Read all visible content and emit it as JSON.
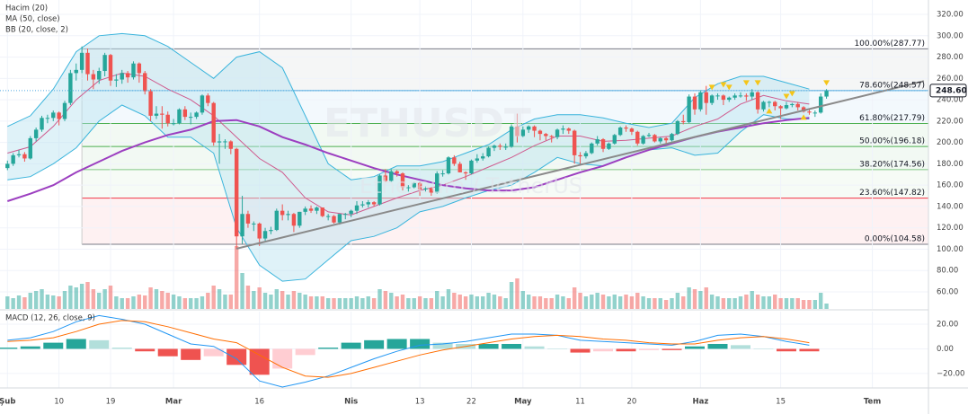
{
  "chart_data": {
    "type": "candlestick",
    "watermark": "ETHUSDT",
    "watermark_sub": "Ethereum / TetherUS",
    "volume_name": "Hacim (20)",
    "up_color": "#26a69a",
    "down_color": "#ef5350",
    "ylim": [
      44,
      333.5
    ],
    "yticks": [
      {
        "value": 320,
        "label": "320.00"
      },
      {
        "value": 300,
        "label": "300.00"
      },
      {
        "value": 280,
        "label": "280.00"
      },
      {
        "value": 260,
        "label": "260.00"
      },
      {
        "value": 240,
        "label": "240.00"
      },
      {
        "value": 220,
        "label": "220.00"
      },
      {
        "value": 200,
        "label": "200.00"
      },
      {
        "value": 180,
        "label": "180.00"
      },
      {
        "value": 160,
        "label": "160.00"
      },
      {
        "value": 140,
        "label": "140.00"
      },
      {
        "value": 120,
        "label": "120.00"
      },
      {
        "value": 100,
        "label": "100.00"
      },
      {
        "value": 80,
        "label": "80.00"
      },
      {
        "value": 60,
        "label": "60.00"
      }
    ],
    "xlim": [
      -1.3,
      160.8
    ],
    "xticks": [
      {
        "value": 0,
        "label": "Şub"
      },
      {
        "value": 9,
        "label": "10"
      },
      {
        "value": 18,
        "label": "19"
      },
      {
        "value": 29,
        "label": "Mar"
      },
      {
        "value": 44,
        "label": "16"
      },
      {
        "value": 60,
        "label": "Nis"
      },
      {
        "value": 72,
        "label": "13"
      },
      {
        "value": 81,
        "label": "22"
      },
      {
        "value": 90,
        "label": "May"
      },
      {
        "value": 100,
        "label": "11"
      },
      {
        "value": 109,
        "label": "20"
      },
      {
        "value": 121,
        "label": "Haz"
      },
      {
        "value": 135,
        "label": "15"
      },
      {
        "value": 151,
        "label": "Tem"
      }
    ],
    "grid": true,
    "ohlc": [
      [
        176,
        183,
        174,
        180
      ],
      [
        180,
        190,
        178,
        188
      ],
      [
        188,
        193,
        186,
        189
      ],
      [
        189,
        191,
        182,
        185
      ],
      [
        185,
        206,
        184,
        204
      ],
      [
        204,
        214,
        201,
        212
      ],
      [
        212,
        225,
        210,
        223
      ],
      [
        223,
        226,
        218,
        223
      ],
      [
        223,
        230,
        220,
        228
      ],
      [
        228,
        229,
        216,
        222
      ],
      [
        222,
        239,
        220,
        237
      ],
      [
        237,
        268,
        235,
        265
      ],
      [
        265,
        274,
        258,
        268
      ],
      [
        268,
        290,
        265,
        284
      ],
      [
        284,
        288,
        258,
        264
      ],
      [
        264,
        268,
        250,
        259
      ],
      [
        259,
        270,
        255,
        267
      ],
      [
        267,
        284,
        262,
        282
      ],
      [
        282,
        283,
        253,
        258
      ],
      [
        258,
        264,
        252,
        259
      ],
      [
        259,
        268,
        255,
        265
      ],
      [
        265,
        267,
        256,
        261
      ],
      [
        261,
        276,
        259,
        274
      ],
      [
        274,
        275,
        256,
        265
      ],
      [
        265,
        267,
        245,
        248
      ],
      [
        248,
        250,
        220,
        225
      ],
      [
        225,
        234,
        222,
        227
      ],
      [
        227,
        234,
        213,
        226
      ],
      [
        226,
        229,
        215,
        218
      ],
      [
        218,
        222,
        216,
        218
      ],
      [
        218,
        232,
        217,
        231
      ],
      [
        231,
        234,
        221,
        224
      ],
      [
        224,
        228,
        217,
        224
      ],
      [
        224,
        229,
        222,
        228
      ],
      [
        228,
        245,
        226,
        244
      ],
      [
        244,
        246,
        234,
        237
      ],
      [
        237,
        238,
        197,
        200
      ],
      [
        200,
        208,
        180,
        201
      ],
      [
        201,
        203,
        194,
        201
      ],
      [
        201,
        202,
        189,
        194
      ],
      [
        194,
        195,
        100,
        112
      ],
      [
        112,
        150,
        105,
        133
      ],
      [
        133,
        136,
        120,
        124
      ],
      [
        124,
        126,
        117,
        124
      ],
      [
        124,
        125,
        103,
        110
      ],
      [
        110,
        120,
        108,
        117
      ],
      [
        117,
        121,
        114,
        118
      ],
      [
        118,
        138,
        117,
        136
      ],
      [
        136,
        142,
        127,
        132
      ],
      [
        132,
        136,
        127,
        133
      ],
      [
        133,
        134,
        116,
        122
      ],
      [
        122,
        135,
        120,
        135
      ],
      [
        135,
        140,
        132,
        138
      ],
      [
        138,
        141,
        134,
        136
      ],
      [
        136,
        140,
        133,
        139
      ],
      [
        139,
        139,
        130,
        131
      ],
      [
        131,
        133,
        127,
        131
      ],
      [
        131,
        132,
        124,
        125
      ],
      [
        125,
        133,
        123,
        133
      ],
      [
        133,
        134,
        128,
        133
      ],
      [
        133,
        137,
        130,
        136
      ],
      [
        136,
        145,
        133,
        141
      ],
      [
        141,
        145,
        139,
        142
      ],
      [
        142,
        146,
        139,
        144
      ],
      [
        144,
        145,
        140,
        142
      ],
      [
        142,
        170,
        141,
        169
      ],
      [
        169,
        175,
        163,
        164
      ],
      [
        164,
        175,
        163,
        173
      ],
      [
        173,
        174,
        168,
        171
      ],
      [
        171,
        172,
        155,
        158
      ],
      [
        158,
        160,
        154,
        158
      ],
      [
        158,
        163,
        157,
        162
      ],
      [
        162,
        163,
        150,
        156
      ],
      [
        156,
        159,
        154,
        157
      ],
      [
        157,
        158,
        150,
        153
      ],
      [
        153,
        173,
        152,
        171
      ],
      [
        171,
        174,
        168,
        171
      ],
      [
        171,
        187,
        170,
        186
      ],
      [
        186,
        188,
        178,
        180
      ],
      [
        180,
        182,
        172,
        172
      ],
      [
        172,
        173,
        165,
        171
      ],
      [
        171,
        184,
        170,
        183
      ],
      [
        183,
        189,
        181,
        185
      ],
      [
        185,
        190,
        183,
        187
      ],
      [
        187,
        196,
        186,
        195
      ],
      [
        195,
        198,
        192,
        197
      ],
      [
        197,
        199,
        193,
        196
      ],
      [
        196,
        199,
        193,
        196
      ],
      [
        196,
        217,
        195,
        215
      ],
      [
        215,
        227,
        200,
        206
      ],
      [
        206,
        215,
        205,
        212
      ],
      [
        212,
        216,
        209,
        215
      ],
      [
        215,
        216,
        205,
        211
      ],
      [
        211,
        212,
        202,
        208
      ],
      [
        208,
        209,
        202,
        206
      ],
      [
        206,
        207,
        200,
        205
      ],
      [
        205,
        213,
        203,
        212
      ],
      [
        212,
        216,
        208,
        213
      ],
      [
        213,
        214,
        208,
        211
      ],
      [
        211,
        212,
        180,
        188
      ],
      [
        188,
        191,
        180,
        187
      ],
      [
        187,
        192,
        185,
        190
      ],
      [
        190,
        200,
        189,
        199
      ],
      [
        199,
        206,
        197,
        203
      ],
      [
        203,
        204,
        191,
        194
      ],
      [
        194,
        200,
        193,
        199
      ],
      [
        199,
        208,
        198,
        207
      ],
      [
        207,
        215,
        206,
        214
      ],
      [
        214,
        216,
        210,
        213
      ],
      [
        213,
        214,
        207,
        210
      ],
      [
        210,
        211,
        197,
        199
      ],
      [
        199,
        207,
        198,
        206
      ],
      [
        206,
        209,
        205,
        207
      ],
      [
        207,
        208,
        200,
        201
      ],
      [
        201,
        205,
        199,
        204
      ],
      [
        204,
        205,
        199,
        202
      ],
      [
        202,
        209,
        201,
        208
      ],
      [
        208,
        221,
        207,
        220
      ],
      [
        220,
        226,
        217,
        219
      ],
      [
        219,
        245,
        218,
        243
      ],
      [
        243,
        246,
        226,
        231
      ],
      [
        231,
        249,
        229,
        247
      ],
      [
        247,
        253,
        226,
        237
      ],
      [
        237,
        245,
        235,
        244
      ],
      [
        244,
        246,
        240,
        244
      ],
      [
        244,
        245,
        235,
        240
      ],
      [
        240,
        243,
        238,
        242
      ],
      [
        242,
        246,
        240,
        244
      ],
      [
        244,
        247,
        242,
        244
      ],
      [
        244,
        246,
        239,
        243
      ],
      [
        243,
        250,
        240,
        247
      ],
      [
        247,
        248,
        227,
        231
      ],
      [
        231,
        239,
        229,
        238
      ],
      [
        238,
        239,
        233,
        238
      ],
      [
        238,
        239,
        230,
        234
      ],
      [
        234,
        235,
        222,
        232
      ],
      [
        232,
        238,
        231,
        235
      ],
      [
        235,
        237,
        233,
        236
      ],
      [
        236,
        238,
        230,
        233
      ],
      [
        233,
        234,
        228,
        229
      ],
      [
        229,
        231,
        226,
        228
      ],
      [
        228,
        230,
        224,
        228
      ],
      [
        228,
        246,
        227,
        243
      ],
      [
        243,
        250,
        241,
        248.6
      ]
    ],
    "volume": [
      14,
      12,
      15,
      13,
      18,
      20,
      22,
      16,
      15,
      14,
      20,
      26,
      24,
      28,
      30,
      22,
      18,
      22,
      26,
      14,
      12,
      12,
      14,
      16,
      15,
      24,
      22,
      20,
      18,
      16,
      14,
      12,
      12,
      12,
      14,
      18,
      26,
      22,
      16,
      16,
      70,
      40,
      26,
      20,
      24,
      18,
      16,
      22,
      20,
      16,
      20,
      18,
      16,
      14,
      14,
      14,
      12,
      12,
      12,
      12,
      12,
      14,
      12,
      14,
      12,
      22,
      20,
      18,
      14,
      16,
      12,
      12,
      14,
      12,
      12,
      20,
      14,
      22,
      18,
      16,
      14,
      16,
      14,
      14,
      18,
      16,
      14,
      12,
      30,
      34,
      20,
      16,
      14,
      14,
      12,
      12,
      16,
      14,
      12,
      24,
      18,
      14,
      16,
      18,
      16,
      14,
      16,
      14,
      16,
      14,
      18,
      14,
      12,
      12,
      12,
      10,
      12,
      18,
      14,
      24,
      22,
      20,
      24,
      16,
      14,
      12,
      12,
      12,
      14,
      16,
      20,
      16,
      14,
      14,
      16,
      12,
      12,
      12,
      12,
      10,
      10,
      10,
      18,
      6
    ],
    "indicator_x": [
      0,
      4,
      8,
      12,
      16,
      20,
      24,
      28,
      32,
      36,
      40,
      44,
      48,
      52,
      56,
      60,
      64,
      68,
      72,
      76,
      80,
      84,
      88,
      92,
      96,
      100,
      104,
      108,
      112,
      116,
      120,
      124,
      128,
      132,
      136,
      140
    ],
    "ma": {
      "name": "MA (50, close)",
      "color": "#9c3fc0",
      "values": [
        145,
        152,
        160,
        172,
        182,
        192,
        200,
        207,
        212,
        220,
        221,
        215,
        205,
        198,
        190,
        183,
        176,
        170,
        165,
        160,
        157,
        155,
        155,
        158,
        165,
        172,
        178,
        186,
        193,
        199,
        205,
        210,
        214,
        218,
        221,
        223
      ]
    },
    "bb": {
      "name": "BB (20, close, 2)",
      "color": "#3ab4dc",
      "fill": "#b7e3ef",
      "basis_color": "#cf5b8e",
      "upper": [
        215,
        225,
        250,
        285,
        300,
        302,
        300,
        290,
        275,
        260,
        280,
        285,
        270,
        225,
        180,
        165,
        168,
        178,
        178,
        182,
        190,
        198,
        212,
        222,
        226,
        226,
        223,
        218,
        214,
        218,
        242,
        255,
        262,
        262,
        256,
        250
      ],
      "basis": [
        190,
        196,
        215,
        240,
        258,
        265,
        262,
        250,
        240,
        225,
        205,
        185,
        172,
        148,
        135,
        132,
        140,
        148,
        155,
        160,
        168,
        177,
        186,
        197,
        206,
        206,
        201,
        202,
        204,
        206,
        215,
        222,
        236,
        244,
        239,
        236
      ],
      "lower": [
        165,
        168,
        180,
        195,
        220,
        235,
        225,
        205,
        205,
        190,
        120,
        85,
        70,
        72,
        90,
        108,
        112,
        120,
        135,
        140,
        148,
        155,
        160,
        172,
        186,
        180,
        178,
        186,
        193,
        195,
        188,
        190,
        210,
        226,
        222,
        222
      ]
    },
    "fib": {
      "x_start": 13,
      "levels": [
        {
          "value": 287.77,
          "label": "100.00%(287.77)",
          "color": "#787b86"
        },
        {
          "value": 248.57,
          "label": "78.60%(248.57)",
          "color": "#4fa8e0"
        },
        {
          "value": 217.79,
          "label": "61.80%(217.79)",
          "color": "#4caf50"
        },
        {
          "value": 196.18,
          "label": "50.00%(196.18)",
          "color": "#4caf50"
        },
        {
          "value": 174.56,
          "label": "38.20%(174.56)",
          "color": "#81c784"
        },
        {
          "value": 147.82,
          "label": "23.60%(147.82)",
          "color": "#f23645"
        },
        {
          "value": 104.58,
          "label": "0.00%(104.58)",
          "color": "#787b86"
        }
      ]
    },
    "trend_line": {
      "x": [
        40,
        160
      ],
      "y": [
        100.5,
        257.5
      ],
      "color": "#8a8a8a"
    },
    "last_price": {
      "value": 248.6,
      "label": "248.60",
      "color": "#4fa8e0"
    },
    "markers_down": {
      "color": "#f5c518",
      "x": [
        123,
        125,
        126,
        129,
        131,
        136,
        137,
        143
      ],
      "y": [
        251.6,
        254,
        251.6,
        255.8,
        255.8,
        243,
        245.7,
        255.8
      ]
    },
    "markers_up": {
      "color": "#f5c518",
      "x": [
        133,
        139
      ],
      "y": [
        229.7,
        223.8
      ]
    },
    "macd": {
      "name": "MACD (12, 26, close, 9)",
      "macd_color": "#2196f3",
      "signal_color": "#ff6d00",
      "ylim": [
        -31.7,
        30.2
      ],
      "yticks": [
        {
          "value": 20,
          "label": "20.00"
        },
        {
          "value": 0,
          "label": "0.00"
        },
        {
          "value": -20,
          "label": "−20.00"
        }
      ],
      "macd": [
        7,
        9,
        14,
        22,
        27,
        24,
        20,
        12,
        4,
        2,
        -8,
        -26,
        -31,
        -27,
        -22,
        -15,
        -8,
        -2,
        3,
        4,
        6,
        9,
        12,
        12,
        11,
        7,
        6,
        5,
        4,
        3,
        6,
        11,
        12,
        10,
        6,
        3
      ],
      "signal": [
        6,
        7,
        9,
        14,
        20,
        23,
        22,
        18,
        13,
        8,
        5,
        -5,
        -15,
        -22,
        -23,
        -20,
        -15,
        -10,
        -5,
        -1,
        2,
        5,
        8,
        10,
        11,
        10,
        8,
        7,
        5,
        4,
        4,
        7,
        9,
        10,
        8,
        5
      ],
      "histogram": [
        1,
        2,
        5,
        8,
        7,
        1,
        -2,
        -6,
        -9,
        -6,
        -13,
        -21,
        -16,
        -5,
        1,
        5,
        7,
        8,
        8,
        5,
        4,
        4,
        4,
        2,
        0,
        -3,
        -2,
        -2,
        -1,
        -1,
        2,
        4,
        3,
        0,
        -2,
        -2
      ]
    }
  }
}
